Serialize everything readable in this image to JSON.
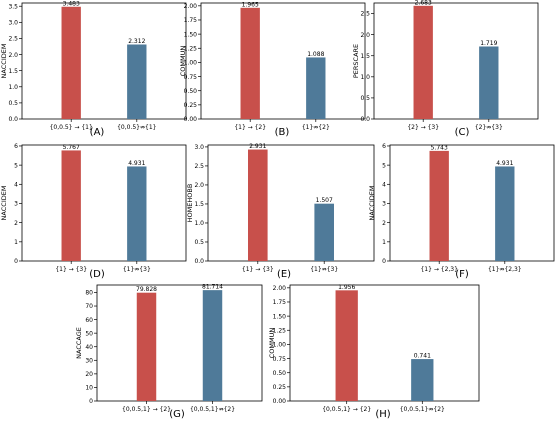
{
  "colors": {
    "red": "#c8504b",
    "blue": "#4f7a99"
  },
  "chart_data": [
    {
      "panel_label": "(A)",
      "type": "bar",
      "ylabel": "NACCIDEM",
      "categories": [
        "{0,0.5} → {1}",
        "{0,0.5}⇏{1}"
      ],
      "values": [
        3.483,
        2.312
      ],
      "value_labels": [
        "3.483",
        "2.312"
      ],
      "ylim": [
        0,
        3.6
      ],
      "yticks": [
        "0.0",
        "0.5",
        "1.0",
        "1.5",
        "2.0",
        "2.5",
        "3.0",
        "3.5"
      ]
    },
    {
      "panel_label": "(B)",
      "type": "bar",
      "ylabel": "COMMUN",
      "categories": [
        "{1} → {2}",
        "{1}⇏{2}"
      ],
      "values": [
        1.965,
        1.088
      ],
      "value_labels": [
        "1.965",
        "1.088"
      ],
      "ylim": [
        0,
        2.05
      ],
      "yticks": [
        "0.00",
        "0.25",
        "0.50",
        "0.75",
        "1.00",
        "1.25",
        "1.50",
        "1.75",
        "2.00"
      ]
    },
    {
      "panel_label": "(C)",
      "type": "bar",
      "ylabel": "PERSCARE",
      "categories": [
        "{2} → {3}",
        "{2}⇏{3}"
      ],
      "values": [
        2.683,
        1.719
      ],
      "value_labels": [
        "2.683",
        "1.719"
      ],
      "ylim": [
        0,
        2.75
      ],
      "yticks": [
        "0.0",
        "0.5",
        "1.0",
        "1.5",
        "2.0",
        "2.5"
      ]
    },
    {
      "panel_label": "(D)",
      "type": "bar",
      "ylabel": "NACCIDEM",
      "categories": [
        "{1} → {3}",
        "{1}⇏{3}"
      ],
      "values": [
        5.767,
        4.931
      ],
      "value_labels": [
        "5.767",
        "4.931"
      ],
      "ylim": [
        0,
        6.05
      ],
      "yticks": [
        "0",
        "1",
        "2",
        "3",
        "4",
        "5",
        "6"
      ]
    },
    {
      "panel_label": "(E)",
      "type": "bar",
      "ylabel": "HOMEHOBB",
      "categories": [
        "{1} → {3}",
        "{1}⇏{3}"
      ],
      "values": [
        2.931,
        1.507
      ],
      "value_labels": [
        "2.931",
        "1.507"
      ],
      "ylim": [
        0,
        3.05
      ],
      "yticks": [
        "0.0",
        "0.5",
        "1.0",
        "1.5",
        "2.0",
        "2.5",
        "3.0"
      ]
    },
    {
      "panel_label": "(F)",
      "type": "bar",
      "ylabel": "NACCIDEM",
      "categories": [
        "{1} → {2,3}",
        "{1}⇏{2,3}"
      ],
      "values": [
        5.743,
        4.931
      ],
      "value_labels": [
        "5.743",
        "4.931"
      ],
      "ylim": [
        0,
        6.05
      ],
      "yticks": [
        "0",
        "1",
        "2",
        "3",
        "4",
        "5",
        "6"
      ]
    },
    {
      "panel_label": "(G)",
      "type": "bar",
      "ylabel": "NACCAGE",
      "categories": [
        "{0,0.5,1} → {2}",
        "{0,0.5,1}⇏{2}"
      ],
      "values": [
        79.828,
        81.714
      ],
      "value_labels": [
        "79.828",
        "81.714"
      ],
      "ylim": [
        0,
        85.5
      ],
      "yticks": [
        "0",
        "10",
        "20",
        "30",
        "40",
        "50",
        "60",
        "70",
        "80"
      ]
    },
    {
      "panel_label": "(H)",
      "type": "bar",
      "ylabel": "COMMUN",
      "categories": [
        "{0,0.5,1} → {2}",
        "{0,0.5,1}⇏{2}"
      ],
      "values": [
        1.956,
        0.741
      ],
      "value_labels": [
        "1.956",
        "0.741"
      ],
      "ylim": [
        0,
        2.05
      ],
      "yticks": [
        "0.00",
        "0.25",
        "0.50",
        "0.75",
        "1.00",
        "1.25",
        "1.50",
        "1.75",
        "2.00"
      ]
    }
  ]
}
